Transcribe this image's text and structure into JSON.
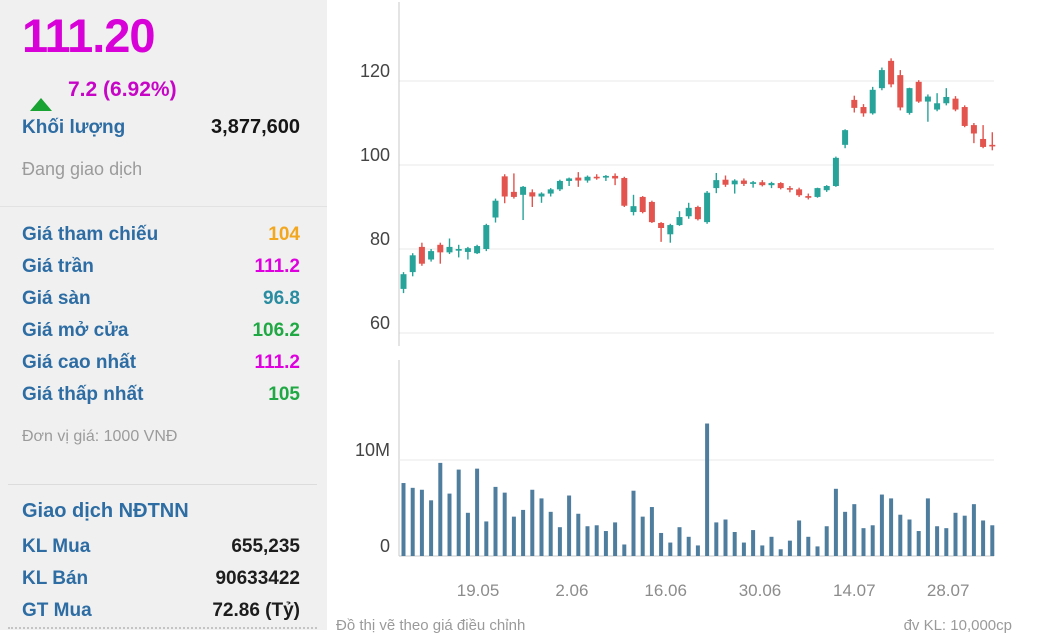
{
  "quote_panel": {
    "price": "111.20",
    "change": "7.2 (6.92%)",
    "volume_label": "Khối lượng",
    "volume_value": "3,877,600",
    "session_status": "Đang giao dịch",
    "price_rows": [
      {
        "label": "Giá tham chiếu",
        "value": "104",
        "color": "#f2a71f"
      },
      {
        "label": "Giá trần",
        "value": "111.2",
        "color": "#df00df"
      },
      {
        "label": "Giá sàn",
        "value": "96.8",
        "color": "#2a8ca0"
      },
      {
        "label": "Giá mở cửa",
        "value": "106.2",
        "color": "#1fa843"
      },
      {
        "label": "Giá cao nhất",
        "value": "111.2",
        "color": "#df00df"
      },
      {
        "label": "Giá thấp nhất",
        "value": "105",
        "color": "#1fa843"
      }
    ],
    "price_unit_note": "Đơn vị giá: 1000 VNĐ",
    "foreign_section_title": "Giao dịch NĐTNN",
    "foreign_rows": [
      {
        "label": "KL Mua",
        "value": "655,235"
      },
      {
        "label": "KL Bán",
        "value": "90633422"
      },
      {
        "label": "GT Mua",
        "value": "72.86 (Tỷ)"
      }
    ],
    "colors": {
      "price": "#d802d8",
      "change": "#c705c7",
      "up_arrow": "#18a332",
      "label_blue": "#2d6da3"
    }
  },
  "footer": {
    "left_note": "Đồ thị vẽ theo giá điều chỉnh",
    "right_note": "đv KL: 10,000cp"
  },
  "chart_data": {
    "type": "candlestick+volume",
    "price_ticks": [
      120,
      100,
      80,
      60
    ],
    "price_range_visible": [
      58,
      132
    ],
    "volume_ticks": [
      {
        "label": "10M",
        "value": 10
      },
      {
        "label": "0",
        "value": 0
      }
    ],
    "volume_unit": "millions of shares",
    "x_ticks": [
      "19.05",
      "2.06",
      "16.06",
      "30.06",
      "14.07",
      "28.07"
    ],
    "x_tick_candle_index": [
      8.1,
      18.3,
      28.5,
      38.75,
      49,
      59.2
    ],
    "up_color": "#27a399",
    "down_color": "#e2544d",
    "volume_color": "#4e7d9e",
    "grid_color": "#e8e8e8",
    "axis_color": "#c9c9c9",
    "price_tick_color": "#444444",
    "x_tick_color": "#8c8c8c",
    "candles_ohlc": [
      [
        70.5,
        74.5,
        69.5,
        74
      ],
      [
        74.5,
        79,
        73.5,
        78.5
      ],
      [
        80.5,
        81.5,
        76,
        76.5
      ],
      [
        77.5,
        80,
        77,
        79.5
      ],
      [
        81,
        81.5,
        76.5,
        79.2
      ],
      [
        79.2,
        82.5,
        78.8,
        80.5
      ],
      [
        79.6,
        81,
        78,
        80
      ],
      [
        79.3,
        80.5,
        77.5,
        80.2
      ],
      [
        79,
        81,
        78.8,
        80.7
      ],
      [
        80,
        86,
        79.5,
        85.7
      ],
      [
        87.5,
        92,
        86.3,
        91.5
      ],
      [
        97.3,
        97.8,
        90.9,
        92.5
      ],
      [
        93.6,
        98,
        92,
        92.4
      ],
      [
        92.9,
        95,
        86.9,
        94.8
      ],
      [
        93.5,
        94.2,
        90,
        92.5
      ],
      [
        92.5,
        93.5,
        91,
        93.2
      ],
      [
        93.2,
        94.5,
        92.5,
        94.2
      ],
      [
        94.2,
        96.5,
        93.8,
        96.2
      ],
      [
        96.2,
        97,
        95,
        96.8
      ],
      [
        97,
        98.3,
        94.8,
        96.3
      ],
      [
        96.3,
        97.5,
        95.8,
        97.2
      ],
      [
        97.2,
        97.8,
        96.5,
        97
      ],
      [
        97,
        97.6,
        96.2,
        97.4
      ],
      [
        97.4,
        98,
        95.2,
        96.8
      ],
      [
        96.9,
        97.2,
        90,
        90.3
      ],
      [
        88.8,
        92.9,
        88,
        90.2
      ],
      [
        92.4,
        92.6,
        88.5,
        88.8
      ],
      [
        91.2,
        91.5,
        86.2,
        86.4
      ],
      [
        86.2,
        86.4,
        81.7,
        85
      ],
      [
        83.5,
        86,
        81.5,
        85.7
      ],
      [
        85.7,
        89,
        85.5,
        87.6
      ],
      [
        87.8,
        91,
        87.2,
        89.8
      ],
      [
        90,
        90.3,
        86.8,
        87.1
      ],
      [
        86.4,
        93.8,
        86,
        93.4
      ],
      [
        94.5,
        98.1,
        93.3,
        96.4
      ],
      [
        96.5,
        97.5,
        94.8,
        95.3
      ],
      [
        95.4,
        96.6,
        93.2,
        96.3
      ],
      [
        96.3,
        96.8,
        95,
        95.5
      ],
      [
        95.5,
        96.2,
        94.6,
        95.9
      ],
      [
        95.9,
        96.4,
        94.9,
        95.2
      ],
      [
        95.2,
        96,
        94.5,
        95.7
      ],
      [
        95.7,
        95.9,
        94.2,
        94.5
      ],
      [
        94.5,
        95,
        93.5,
        94.2
      ],
      [
        94.2,
        94.6,
        92.4,
        92.8
      ],
      [
        92.6,
        93.2,
        91.8,
        92.2
      ],
      [
        92.4,
        94.6,
        92.2,
        94.5
      ],
      [
        94,
        95.2,
        93.6,
        95
      ],
      [
        95,
        102,
        94.8,
        101.7
      ],
      [
        104.8,
        108.5,
        104,
        108.3
      ],
      [
        115.5,
        116.5,
        112.5,
        113.6
      ],
      [
        113.8,
        114.5,
        111.5,
        112.3
      ],
      [
        112.3,
        118.6,
        112,
        117.9
      ],
      [
        118.3,
        123.2,
        117.8,
        122.6
      ],
      [
        124.8,
        125.4,
        118.5,
        119.2
      ],
      [
        121.4,
        122.6,
        113,
        113.7
      ],
      [
        112.4,
        118.4,
        112,
        118.3
      ],
      [
        119.8,
        120.2,
        114.8,
        115.1
      ],
      [
        115.1,
        116.8,
        110.3,
        116.3
      ],
      [
        113.2,
        117.1,
        112.8,
        114.7
      ],
      [
        114.7,
        118.3,
        114.2,
        116.2
      ],
      [
        115.8,
        116.4,
        112.8,
        113.2
      ],
      [
        113.8,
        114.2,
        109,
        109.3
      ],
      [
        109.5,
        110,
        105.2,
        107.5
      ],
      [
        106.2,
        109.5,
        104,
        104.3
      ],
      [
        104.8,
        107.8,
        103.5,
        104.5
      ]
    ],
    "volumes_m": [
      7.6,
      7.1,
      6.9,
      5.8,
      9.7,
      6.5,
      9.0,
      4.5,
      9.1,
      3.6,
      7.2,
      6.6,
      4.1,
      4.8,
      6.9,
      6.0,
      4.6,
      3.0,
      6.3,
      4.4,
      3.1,
      3.2,
      2.6,
      3.5,
      1.2,
      6.8,
      4.1,
      5.1,
      2.4,
      1.4,
      3.0,
      2.0,
      1.1,
      13.8,
      3.5,
      3.8,
      2.5,
      1.4,
      2.7,
      1.1,
      2.0,
      0.7,
      1.6,
      3.7,
      2.0,
      1.0,
      3.1,
      7.0,
      4.6,
      5.4,
      2.9,
      3.2,
      6.4,
      6.0,
      4.3,
      3.8,
      2.6,
      6.0,
      3.1,
      2.9,
      4.5,
      4.2,
      5.4,
      3.7,
      3.2
    ]
  }
}
